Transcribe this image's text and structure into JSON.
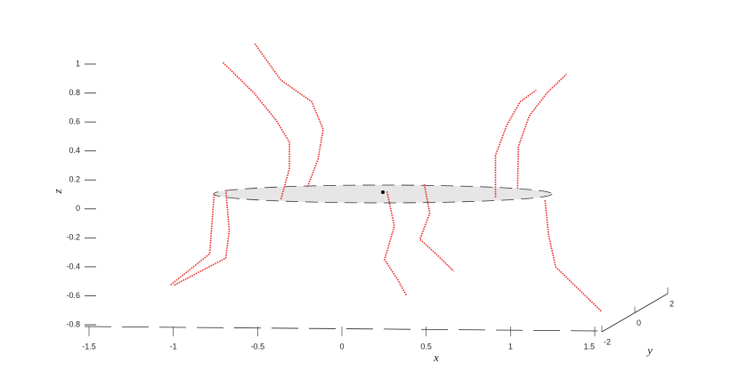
{
  "chart_data": {
    "type": "line3d",
    "xlabel": "x",
    "ylabel": "y",
    "zlabel": "z",
    "xlim": [
      -1.5,
      1.5
    ],
    "xticks": [
      -1.5,
      -1,
      -0.5,
      0,
      0.5,
      1,
      1.5
    ],
    "ylim": [
      -2,
      2
    ],
    "yticks": [
      -2,
      0,
      2
    ],
    "zlim": [
      -0.8,
      1
    ],
    "zticks": [
      -0.8,
      -0.6,
      -0.4,
      -0.2,
      0,
      0.2,
      0.4,
      0.6,
      0.8,
      1
    ],
    "series": [
      {
        "color": "#e8231e",
        "x": [
          -0.705,
          -0.521,
          -0.389,
          -0.311,
          -0.311,
          -0.363
        ],
        "values": [
          1.01,
          0.8,
          0.61,
          0.46,
          0.28,
          0.06
        ]
      },
      {
        "color": "#e8231e",
        "x": [
          -0.516,
          -0.363,
          -0.179,
          -0.111,
          -0.142,
          -0.205
        ],
        "values": [
          1.14,
          0.89,
          0.74,
          0.55,
          0.34,
          0.15
        ]
      },
      {
        "color": "#e8231e",
        "x": [
          -0.758,
          -0.774,
          -0.784,
          -1.021
        ],
        "values": [
          0.1,
          -0.15,
          -0.31,
          -0.53
        ]
      },
      {
        "color": "#e8231e",
        "x": [
          -0.689,
          -0.668,
          -0.689,
          -0.837,
          -1.0
        ],
        "values": [
          0.13,
          -0.15,
          -0.34,
          -0.43,
          -0.53
        ]
      },
      {
        "color": "#e8231e",
        "x": [
          0.268,
          0.311,
          0.253,
          0.332,
          0.384
        ],
        "values": [
          0.12,
          -0.12,
          -0.35,
          -0.49,
          -0.6
        ]
      },
      {
        "color": "#e8231e",
        "x": [
          0.489,
          0.521,
          0.463,
          0.558,
          0.663
        ],
        "values": [
          0.17,
          -0.03,
          -0.21,
          -0.31,
          -0.43
        ]
      },
      {
        "color": "#e8231e",
        "x": [
          0.911,
          0.911,
          0.979,
          1.058,
          1.153
        ],
        "values": [
          0.08,
          0.37,
          0.58,
          0.74,
          0.82
        ]
      },
      {
        "color": "#e8231e",
        "x": [
          1.042,
          1.047,
          1.111,
          1.216,
          1.332
        ],
        "values": [
          0.14,
          0.43,
          0.64,
          0.8,
          0.93
        ]
      },
      {
        "color": "#e8231e",
        "x": [
          1.205,
          1.226,
          1.268,
          1.4,
          1.542
        ],
        "values": [
          0.06,
          -0.18,
          -0.4,
          -0.55,
          -0.71
        ]
      }
    ]
  }
}
